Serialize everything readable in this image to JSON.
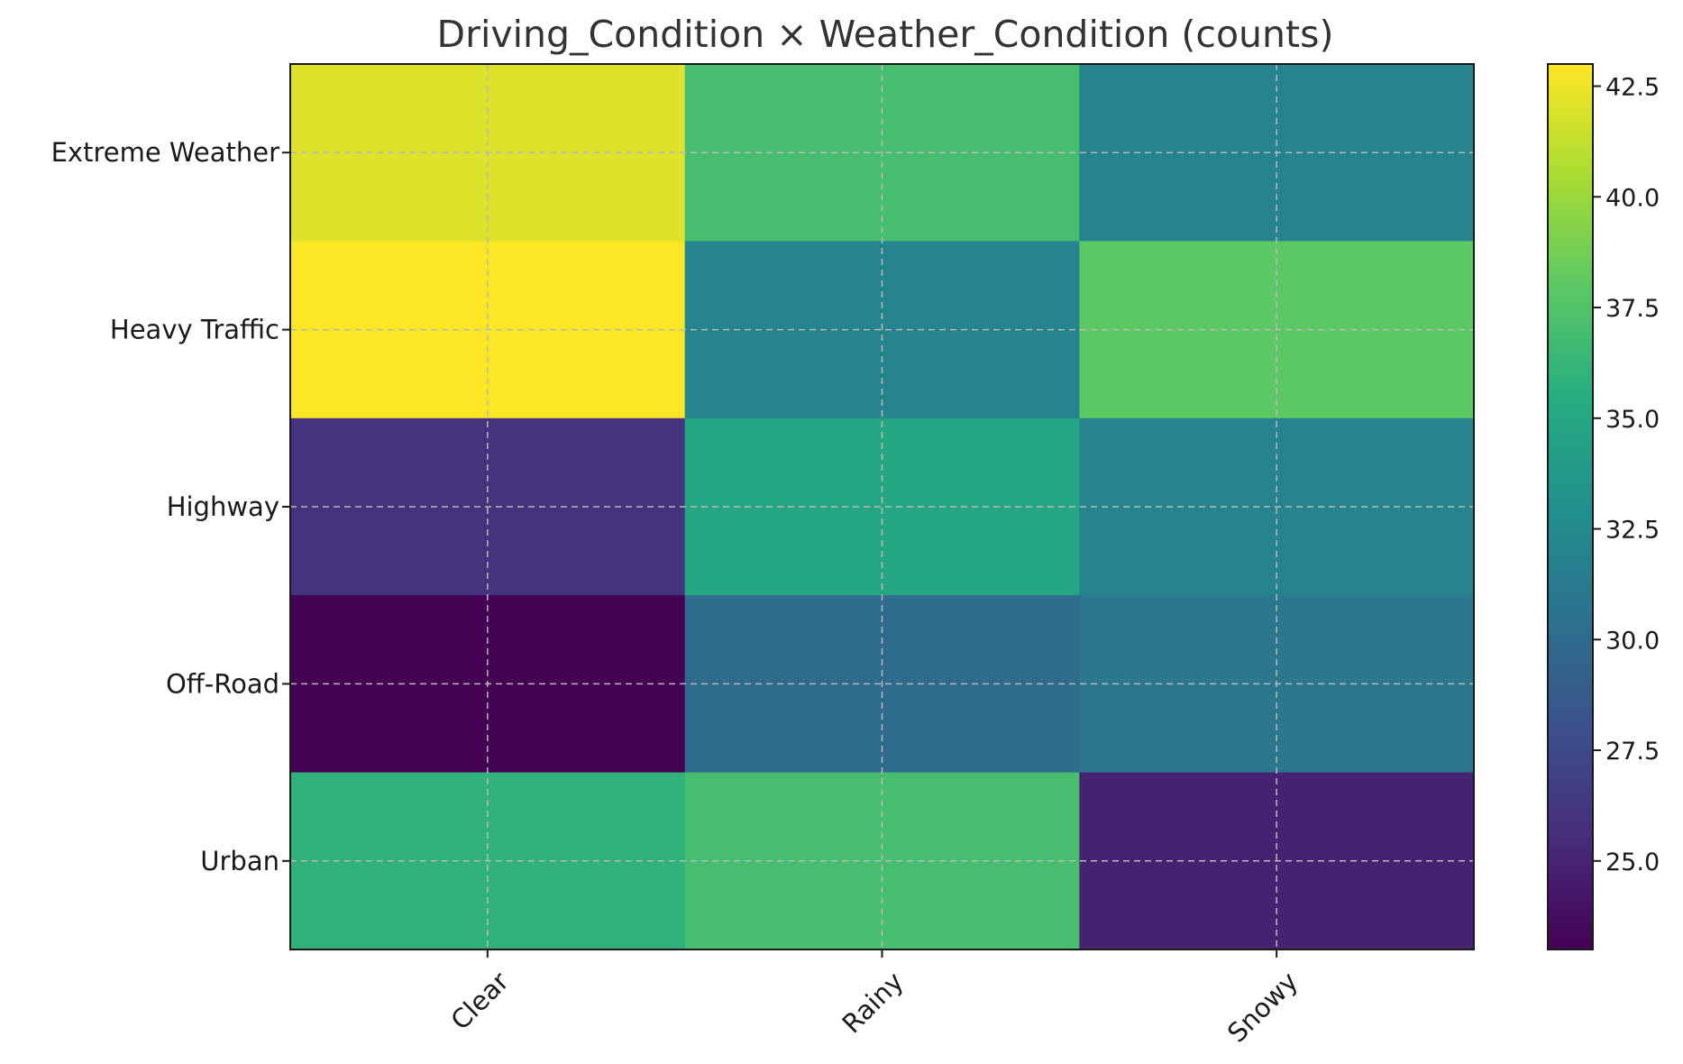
{
  "chart_data": {
    "type": "heatmap",
    "title": "Driving_Condition × Weather_Condition (counts)",
    "xlabel": "",
    "ylabel": "",
    "x_categories": [
      "Clear",
      "Rainy",
      "Snowy"
    ],
    "y_categories": [
      "Extreme Weather",
      "Heavy Traffic",
      "Highway",
      "Off-Road",
      "Urban"
    ],
    "values": [
      [
        42,
        37,
        32
      ],
      [
        43,
        32,
        38
      ],
      [
        26,
        35,
        32
      ],
      [
        23,
        30,
        31
      ],
      [
        36,
        37,
        25
      ]
    ],
    "colormap": "viridis",
    "colorbar": {
      "min": 23,
      "max": 43,
      "ticks": [
        "25.0",
        "27.5",
        "30.0",
        "32.5",
        "35.0",
        "37.5",
        "40.0",
        "42.5"
      ]
    },
    "grid": true
  }
}
